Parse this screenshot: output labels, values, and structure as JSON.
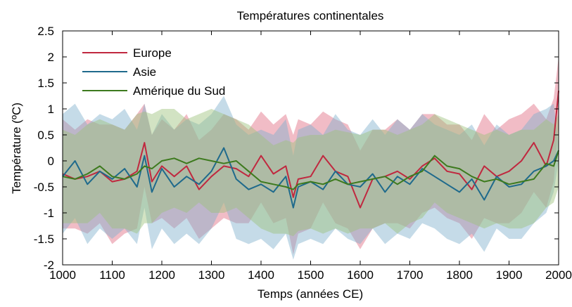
{
  "chart_data": {
    "type": "line",
    "title": "Températures continentales",
    "xlabel": "Temps (années CE)",
    "ylabel": "Température (ºC)",
    "xlim": [
      1000,
      2000
    ],
    "ylim": [
      -2,
      2.5
    ],
    "x_ticks": [
      1000,
      1100,
      1200,
      1300,
      1400,
      1500,
      1600,
      1700,
      1800,
      1900,
      2000
    ],
    "y_ticks": [
      2.5,
      2,
      1.5,
      1,
      0.5,
      0,
      -0.5,
      -1,
      -1.5,
      -2
    ],
    "legend_position": "top-left",
    "grid": false,
    "series": [
      {
        "name": "Europe",
        "color": "#c0283f",
        "fill": "#e06b80",
        "x": [
          1000,
          1025,
          1050,
          1075,
          1100,
          1125,
          1150,
          1165,
          1180,
          1200,
          1225,
          1250,
          1275,
          1300,
          1325,
          1350,
          1375,
          1400,
          1425,
          1450,
          1465,
          1475,
          1500,
          1525,
          1550,
          1575,
          1600,
          1625,
          1650,
          1675,
          1700,
          1725,
          1750,
          1775,
          1800,
          1825,
          1850,
          1875,
          1900,
          1925,
          1950,
          1975,
          1990,
          2000
        ],
        "values": [
          -0.25,
          -0.35,
          -0.3,
          -0.2,
          -0.4,
          -0.35,
          -0.2,
          0.35,
          -0.4,
          -0.1,
          -0.3,
          -0.1,
          -0.55,
          -0.3,
          -0.1,
          -0.15,
          -0.3,
          0.1,
          -0.25,
          -0.1,
          -0.7,
          -0.35,
          -0.3,
          0.1,
          -0.2,
          -0.3,
          -0.9,
          -0.35,
          -0.3,
          -0.2,
          -0.35,
          -0.1,
          0.05,
          -0.2,
          -0.25,
          -0.55,
          -0.1,
          -0.3,
          -0.2,
          0.0,
          0.35,
          -0.1,
          0.4,
          1.35
        ],
        "upper": [
          0.8,
          0.6,
          0.8,
          0.7,
          0.7,
          0.6,
          0.9,
          1.1,
          0.5,
          0.8,
          0.6,
          0.9,
          0.4,
          0.6,
          0.9,
          0.8,
          0.6,
          0.95,
          0.7,
          0.9,
          0.5,
          0.8,
          0.7,
          0.95,
          0.8,
          0.7,
          0.2,
          0.6,
          0.6,
          0.8,
          0.6,
          0.9,
          0.9,
          0.7,
          0.7,
          0.4,
          0.9,
          0.6,
          0.8,
          0.9,
          1.1,
          0.8,
          1.2,
          2.0
        ],
        "lower": [
          -1.3,
          -1.3,
          -1.4,
          -1.2,
          -1.6,
          -1.4,
          -1.3,
          -0.5,
          -1.2,
          -1.1,
          -1.3,
          -1.1,
          -1.5,
          -1.3,
          -1.1,
          -1.2,
          -1.2,
          -0.8,
          -1.2,
          -1.1,
          -1.8,
          -1.4,
          -1.3,
          -0.8,
          -1.2,
          -1.3,
          -1.7,
          -1.3,
          -1.2,
          -1.2,
          -1.3,
          -1.0,
          -0.9,
          -1.1,
          -1.2,
          -1.5,
          -1.1,
          -1.2,
          -1.2,
          -1.0,
          -0.6,
          -0.9,
          -0.4,
          0.7
        ]
      },
      {
        "name": "Asie",
        "color": "#1f6a8c",
        "fill": "#7fb0cc",
        "x": [
          1000,
          1025,
          1050,
          1075,
          1100,
          1125,
          1150,
          1165,
          1180,
          1200,
          1225,
          1250,
          1275,
          1300,
          1325,
          1350,
          1375,
          1400,
          1425,
          1450,
          1465,
          1475,
          1500,
          1525,
          1550,
          1575,
          1600,
          1625,
          1650,
          1675,
          1700,
          1725,
          1750,
          1775,
          1800,
          1825,
          1850,
          1875,
          1900,
          1925,
          1950,
          1975,
          1990,
          2000
        ],
        "values": [
          -0.3,
          0.0,
          -0.45,
          -0.2,
          -0.35,
          -0.15,
          -0.5,
          0.1,
          -0.6,
          -0.15,
          -0.5,
          -0.3,
          -0.45,
          -0.2,
          0.25,
          -0.35,
          -0.55,
          -0.45,
          -0.6,
          -0.3,
          -0.9,
          -0.5,
          -0.4,
          -0.55,
          -0.2,
          -0.45,
          -0.5,
          -0.25,
          -0.6,
          -0.3,
          -0.45,
          -0.15,
          -0.3,
          -0.45,
          -0.6,
          -0.35,
          -0.75,
          -0.3,
          -0.5,
          -0.45,
          -0.2,
          -0.1,
          0.0,
          0.2
        ],
        "upper": [
          0.9,
          1.1,
          0.7,
          0.9,
          0.8,
          1.0,
          0.6,
          1.1,
          0.5,
          0.9,
          0.6,
          0.8,
          0.7,
          0.9,
          1.25,
          0.7,
          0.5,
          0.6,
          0.5,
          0.8,
          0.1,
          0.6,
          0.7,
          0.5,
          0.9,
          0.6,
          0.5,
          0.8,
          0.5,
          0.8,
          0.6,
          0.9,
          0.7,
          0.6,
          0.5,
          0.7,
          0.3,
          0.7,
          0.5,
          0.6,
          0.9,
          1.0,
          1.1,
          0.3
        ],
        "lower": [
          -1.4,
          -1.1,
          -1.6,
          -1.3,
          -1.5,
          -1.3,
          -1.6,
          -0.9,
          -1.7,
          -1.3,
          -1.6,
          -1.4,
          -1.6,
          -1.3,
          -0.8,
          -1.5,
          -1.6,
          -1.5,
          -1.7,
          -1.4,
          -1.9,
          -1.6,
          -1.5,
          -1.6,
          -1.3,
          -1.5,
          -1.6,
          -1.3,
          -1.6,
          -1.4,
          -1.5,
          -1.2,
          -1.3,
          -1.5,
          -1.6,
          -1.4,
          -1.75,
          -1.3,
          -1.5,
          -1.5,
          -1.2,
          -1.0,
          -0.6,
          0.0
        ]
      },
      {
        "name": "Amérique du Sud",
        "color": "#3d7a1e",
        "fill": "#9cc07a",
        "x": [
          1000,
          1025,
          1050,
          1075,
          1100,
          1125,
          1150,
          1165,
          1180,
          1200,
          1225,
          1250,
          1275,
          1300,
          1325,
          1350,
          1375,
          1400,
          1425,
          1450,
          1465,
          1475,
          1500,
          1525,
          1550,
          1575,
          1600,
          1625,
          1650,
          1675,
          1700,
          1725,
          1750,
          1775,
          1800,
          1825,
          1850,
          1875,
          1900,
          1925,
          1950,
          1975,
          1990,
          2000
        ],
        "values": [
          -0.3,
          -0.35,
          -0.25,
          -0.1,
          -0.3,
          -0.35,
          -0.25,
          -0.1,
          -0.15,
          0.0,
          0.05,
          -0.05,
          0.05,
          0.0,
          -0.05,
          0.0,
          -0.2,
          -0.4,
          -0.45,
          -0.5,
          -0.55,
          -0.45,
          -0.4,
          -0.45,
          -0.35,
          -0.45,
          -0.4,
          -0.35,
          -0.3,
          -0.45,
          -0.3,
          -0.2,
          0.1,
          -0.1,
          -0.15,
          -0.3,
          -0.4,
          -0.35,
          -0.45,
          -0.4,
          -0.35,
          -0.05,
          -0.1,
          0.2
        ],
        "upper": [
          0.6,
          0.5,
          0.7,
          0.8,
          0.7,
          0.6,
          0.9,
          0.95,
          0.9,
          1.0,
          1.0,
          0.8,
          0.9,
          1.0,
          0.9,
          0.8,
          0.7,
          0.5,
          0.3,
          0.4,
          0.35,
          0.45,
          0.5,
          0.5,
          0.6,
          0.55,
          0.5,
          0.6,
          0.6,
          0.5,
          0.6,
          0.7,
          0.9,
          0.8,
          0.7,
          0.6,
          0.5,
          0.6,
          0.5,
          0.6,
          0.6,
          0.8,
          0.7,
          0.9
        ],
        "lower": [
          -1.2,
          -1.2,
          -1.2,
          -1.0,
          -1.3,
          -1.3,
          -1.4,
          -1.2,
          -1.2,
          -1.0,
          -0.9,
          -1.0,
          -0.8,
          -1.0,
          -1.0,
          -0.9,
          -1.1,
          -1.3,
          -1.4,
          -1.4,
          -1.45,
          -1.35,
          -1.3,
          -1.4,
          -1.3,
          -1.4,
          -1.3,
          -1.3,
          -1.2,
          -1.4,
          -1.2,
          -1.1,
          -0.8,
          -1.0,
          -1.1,
          -1.2,
          -1.3,
          -1.2,
          -1.3,
          -1.3,
          -1.2,
          -0.9,
          -0.8,
          -0.5
        ]
      }
    ]
  }
}
